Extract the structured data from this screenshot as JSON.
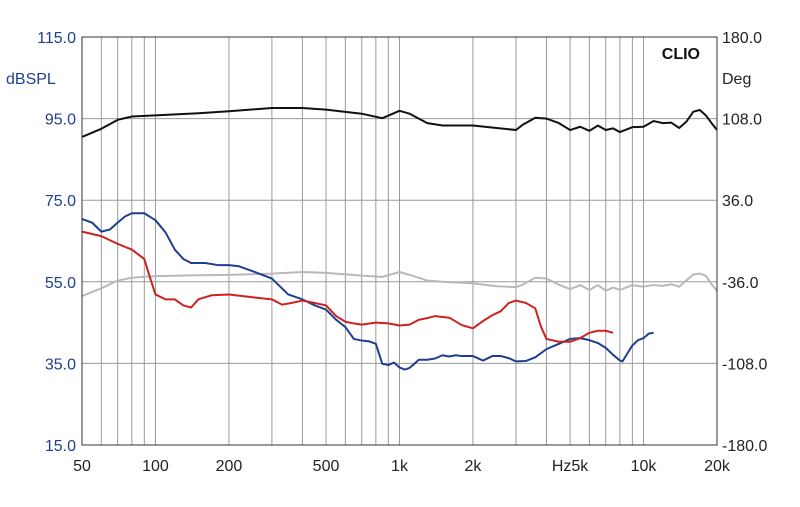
{
  "chart_data": {
    "type": "line",
    "brand": "CLIO",
    "x_scale": "log",
    "xlim": [
      50,
      20000
    ],
    "x_ticks": [
      {
        "v": 50,
        "label": "50"
      },
      {
        "v": 100,
        "label": "100"
      },
      {
        "v": 200,
        "label": "200"
      },
      {
        "v": 500,
        "label": "500"
      },
      {
        "v": 1000,
        "label": "1k"
      },
      {
        "v": 2000,
        "label": "2k"
      },
      {
        "v": 5000,
        "label": "Hz5k"
      },
      {
        "v": 10000,
        "label": "10k"
      },
      {
        "v": 20000,
        "label": "20k"
      }
    ],
    "y_left": {
      "label": "dBSPL",
      "lim": [
        15,
        115
      ],
      "ticks": [
        "115.0",
        "95.0",
        "75.0",
        "55.0",
        "35.0",
        "15.0"
      ],
      "color": "#1f3f8f"
    },
    "y_right": {
      "label": "Deg",
      "lim": [
        -180,
        180
      ],
      "ticks": [
        "180.0",
        "108.0",
        "36.0",
        "-36.0",
        "-108.0",
        "-180.0"
      ],
      "color": "#222222"
    },
    "grid": true,
    "series": [
      {
        "axis": "left",
        "color": "#111111",
        "points": [
          [
            50,
            90.5
          ],
          [
            60,
            92.5
          ],
          [
            70,
            94.7
          ],
          [
            80,
            95.5
          ],
          [
            100,
            95.8
          ],
          [
            150,
            96.3
          ],
          [
            200,
            96.8
          ],
          [
            300,
            97.6
          ],
          [
            400,
            97.6
          ],
          [
            500,
            97.2
          ],
          [
            700,
            96.2
          ],
          [
            850,
            95.1
          ],
          [
            1000,
            96.9
          ],
          [
            1100,
            96.2
          ],
          [
            1300,
            93.9
          ],
          [
            1500,
            93.3
          ],
          [
            2000,
            93.3
          ],
          [
            2500,
            92.7
          ],
          [
            3000,
            92.2
          ],
          [
            3200,
            93.5
          ],
          [
            3600,
            95.2
          ],
          [
            4000,
            95.0
          ],
          [
            4500,
            93.9
          ],
          [
            5000,
            92.2
          ],
          [
            5500,
            93.0
          ],
          [
            6000,
            92.0
          ],
          [
            6500,
            93.3
          ],
          [
            7000,
            92.2
          ],
          [
            7500,
            92.6
          ],
          [
            8000,
            91.7
          ],
          [
            9000,
            92.9
          ],
          [
            10000,
            93.0
          ],
          [
            11000,
            94.4
          ],
          [
            12000,
            93.9
          ],
          [
            13000,
            94.0
          ],
          [
            14000,
            92.7
          ],
          [
            15000,
            94.3
          ],
          [
            16000,
            96.7
          ],
          [
            17000,
            97.1
          ],
          [
            18000,
            95.8
          ],
          [
            19000,
            93.9
          ],
          [
            20000,
            92.2
          ]
        ]
      },
      {
        "axis": "left",
        "color": "#b9b9b9",
        "points": [
          [
            50,
            51.5
          ],
          [
            60,
            53.4
          ],
          [
            70,
            55.3
          ],
          [
            80,
            56.0
          ],
          [
            100,
            56.4
          ],
          [
            150,
            56.6
          ],
          [
            200,
            56.7
          ],
          [
            300,
            57.0
          ],
          [
            400,
            57.4
          ],
          [
            500,
            57.2
          ],
          [
            700,
            56.5
          ],
          [
            850,
            56.2
          ],
          [
            1000,
            57.4
          ],
          [
            1100,
            56.7
          ],
          [
            1300,
            55.3
          ],
          [
            1500,
            55.0
          ],
          [
            2000,
            54.6
          ],
          [
            2500,
            53.9
          ],
          [
            3000,
            53.7
          ],
          [
            3200,
            54.3
          ],
          [
            3600,
            56.0
          ],
          [
            4000,
            55.8
          ],
          [
            4500,
            54.3
          ],
          [
            5000,
            53.2
          ],
          [
            5500,
            54.2
          ],
          [
            6000,
            53.0
          ],
          [
            6500,
            54.2
          ],
          [
            7000,
            52.8
          ],
          [
            7500,
            53.6
          ],
          [
            8000,
            53.0
          ],
          [
            9000,
            54.2
          ],
          [
            10000,
            53.8
          ],
          [
            11000,
            54.2
          ],
          [
            12000,
            54.0
          ],
          [
            13000,
            54.4
          ],
          [
            14000,
            53.8
          ],
          [
            15000,
            55.4
          ],
          [
            16000,
            56.8
          ],
          [
            17000,
            57.0
          ],
          [
            18000,
            56.5
          ],
          [
            19000,
            54.4
          ],
          [
            20000,
            52.8
          ]
        ]
      },
      {
        "axis": "left",
        "color": "#1e3f8e",
        "points": [
          [
            50,
            70.4
          ],
          [
            55,
            69.5
          ],
          [
            60,
            67.3
          ],
          [
            65,
            67.8
          ],
          [
            70,
            69.5
          ],
          [
            75,
            71.0
          ],
          [
            80,
            71.8
          ],
          [
            90,
            71.8
          ],
          [
            100,
            70.1
          ],
          [
            110,
            67.1
          ],
          [
            120,
            62.9
          ],
          [
            130,
            60.6
          ],
          [
            140,
            59.6
          ],
          [
            160,
            59.6
          ],
          [
            180,
            59.1
          ],
          [
            200,
            59.1
          ],
          [
            220,
            58.8
          ],
          [
            250,
            57.6
          ],
          [
            300,
            55.8
          ],
          [
            350,
            51.9
          ],
          [
            400,
            50.7
          ],
          [
            450,
            49.2
          ],
          [
            500,
            48.2
          ],
          [
            550,
            45.7
          ],
          [
            600,
            43.9
          ],
          [
            650,
            41.0
          ],
          [
            700,
            40.6
          ],
          [
            750,
            40.4
          ],
          [
            800,
            39.8
          ],
          [
            850,
            34.9
          ],
          [
            900,
            34.6
          ],
          [
            950,
            35.2
          ],
          [
            1000,
            34.0
          ],
          [
            1050,
            33.5
          ],
          [
            1100,
            33.9
          ],
          [
            1150,
            34.9
          ],
          [
            1200,
            35.9
          ],
          [
            1300,
            35.9
          ],
          [
            1400,
            36.2
          ],
          [
            1500,
            37.0
          ],
          [
            1600,
            36.7
          ],
          [
            1700,
            37.0
          ],
          [
            1800,
            36.8
          ],
          [
            2000,
            36.8
          ],
          [
            2200,
            35.7
          ],
          [
            2400,
            36.8
          ],
          [
            2600,
            36.8
          ],
          [
            2800,
            36.3
          ],
          [
            3000,
            35.5
          ],
          [
            3300,
            35.6
          ],
          [
            3600,
            36.5
          ],
          [
            4000,
            38.5
          ],
          [
            4500,
            39.8
          ],
          [
            5000,
            41.0
          ],
          [
            5500,
            41.2
          ],
          [
            6000,
            40.7
          ],
          [
            6500,
            40.0
          ],
          [
            7000,
            38.8
          ],
          [
            7500,
            37.1
          ],
          [
            8000,
            35.7
          ],
          [
            8200,
            35.5
          ],
          [
            8700,
            38.0
          ],
          [
            9000,
            39.4
          ],
          [
            9500,
            40.7
          ],
          [
            10000,
            41.2
          ],
          [
            10500,
            42.3
          ],
          [
            11000,
            42.5
          ]
        ]
      },
      {
        "axis": "left",
        "color": "#cc2222",
        "points": [
          [
            50,
            67.3
          ],
          [
            60,
            66.2
          ],
          [
            70,
            64.3
          ],
          [
            80,
            62.9
          ],
          [
            90,
            60.6
          ],
          [
            95,
            56.0
          ],
          [
            100,
            51.9
          ],
          [
            110,
            50.7
          ],
          [
            120,
            50.7
          ],
          [
            130,
            49.2
          ],
          [
            140,
            48.7
          ],
          [
            150,
            50.7
          ],
          [
            170,
            51.7
          ],
          [
            200,
            51.9
          ],
          [
            250,
            51.2
          ],
          [
            300,
            50.7
          ],
          [
            330,
            49.4
          ],
          [
            360,
            49.8
          ],
          [
            400,
            50.4
          ],
          [
            450,
            49.8
          ],
          [
            500,
            49.2
          ],
          [
            550,
            46.6
          ],
          [
            600,
            45.2
          ],
          [
            650,
            44.8
          ],
          [
            700,
            44.5
          ],
          [
            800,
            45.0
          ],
          [
            900,
            44.8
          ],
          [
            1000,
            44.3
          ],
          [
            1100,
            44.5
          ],
          [
            1200,
            45.7
          ],
          [
            1300,
            46.1
          ],
          [
            1400,
            46.6
          ],
          [
            1600,
            46.2
          ],
          [
            1800,
            44.4
          ],
          [
            2000,
            43.6
          ],
          [
            2200,
            45.4
          ],
          [
            2400,
            46.8
          ],
          [
            2600,
            47.8
          ],
          [
            2800,
            49.8
          ],
          [
            3000,
            50.4
          ],
          [
            3300,
            49.8
          ],
          [
            3600,
            48.5
          ],
          [
            3800,
            44.0
          ],
          [
            4000,
            41.0
          ],
          [
            4500,
            40.3
          ],
          [
            5000,
            40.3
          ],
          [
            5500,
            41.2
          ],
          [
            6000,
            42.5
          ],
          [
            6500,
            43.0
          ],
          [
            7000,
            43.0
          ],
          [
            7500,
            42.5
          ]
        ]
      }
    ]
  }
}
